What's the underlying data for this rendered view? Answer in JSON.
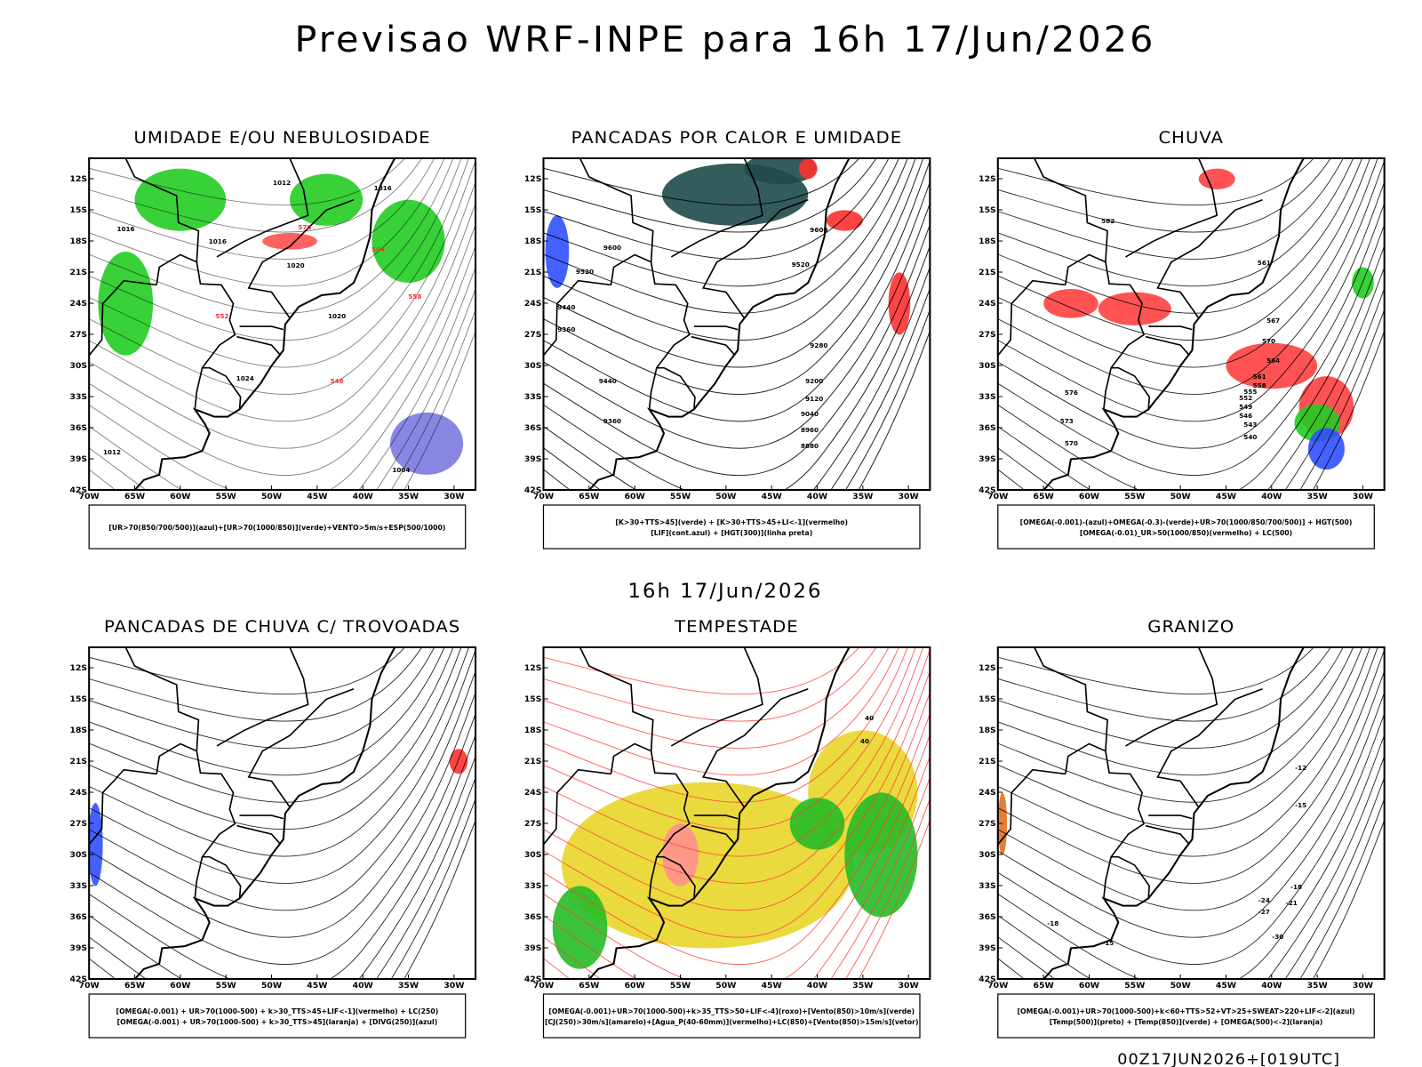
{
  "title": "Previsao WRF-INPE  para 16h 17/Jun/2026",
  "subtitle": "16h 17/Jun/2026",
  "footer": "00Z17JUN2026+[019UTC]",
  "axes": {
    "lat_ticks": [
      "12S",
      "15S",
      "18S",
      "21S",
      "24S",
      "27S",
      "30S",
      "33S",
      "36S",
      "39S",
      "42S"
    ],
    "lon_ticks": [
      "70W",
      "65W",
      "60W",
      "55W",
      "50W",
      "45W",
      "40W",
      "35W",
      "30W"
    ]
  },
  "panels": [
    {
      "title": "UMIDADE E/OU NEBULOSIDADE",
      "legend": [
        "[UR>70(850/700/500)](azul)+[UR>70(1000/850)](verde)+VENTO>5m/s+ESP(500/1000)"
      ],
      "contour_labels": [
        "1012",
        "1016",
        "1016",
        "1020",
        "1024",
        "1020",
        "1016",
        "1012",
        "1004",
        "570",
        "564",
        "558",
        "552",
        "546"
      ]
    },
    {
      "title": "PANCADAS POR CALOR E UMIDADE",
      "legend": [
        "[K>30+TTS>45](verde) + [K>30+TTS>45+LI<-1](vermelho)",
        "[LIF](cont.azul) + [HGT(300)](linha preta)"
      ],
      "contour_labels": [
        "9600",
        "9600",
        "9520",
        "9520",
        "9440",
        "9440",
        "9360",
        "9360",
        "9280",
        "9200",
        "9120",
        "9040",
        "8960",
        "8880"
      ]
    },
    {
      "title": "CHUVA",
      "legend": [
        "[OMEGA(-0.001)-(azul)+OMEGA(-0.3)-(verde)+UR>70(1000/850/700/500)] + HGT(500)",
        "[OMEGA(-0.01)_UR>50(1000/850)(vermelho) + LC(500)"
      ],
      "contour_labels": [
        "582",
        "576",
        "573",
        "570",
        "570",
        "567",
        "564",
        "561",
        "558",
        "555",
        "552",
        "549",
        "546",
        "543",
        "540",
        "561"
      ]
    },
    {
      "title": "PANCADAS DE CHUVA C/ TROVOADAS",
      "legend": [
        "[OMEGA(-0.001) + UR>70(1000-500) + k>30_TTS>45+LIF<-1](vermelho) + LC(250)",
        "[OMEGA(-0.001) + UR>70(1000-500) + k>30_TTS>45](laranja) + [DIVG(250)](azul)"
      ],
      "contour_labels": []
    },
    {
      "title": "TEMPESTADE",
      "legend": [
        "[OMEGA(-0.001)+UR>70(1000-500)+k>35_TTS>50+LIF<-4](roxo)+[Vento(850)>10m/s](verde)",
        "[CJ(250)>30m/s](amarelo)+[Agua_P(40-60mm)](vermelho)+LC(850)+[Vento(850)>15m/s](vetor)"
      ],
      "contour_labels": [
        "40",
        "40"
      ]
    },
    {
      "title": "GRANIZO",
      "legend": [
        "[OMEGA(-0.001)+UR>70(1000-500)+k<60+TTS>52+VT>25+SWEAT>220+LIF<-2](azul)",
        "[Temp(500)](preto) + [Temp(850)](verde) + [OMEGA(500)<-2](laranja)"
      ],
      "contour_labels": [
        "-12",
        "-15",
        "-18",
        "-21",
        "-24",
        "-27",
        "-30",
        "-18",
        "-15"
      ]
    }
  ]
}
